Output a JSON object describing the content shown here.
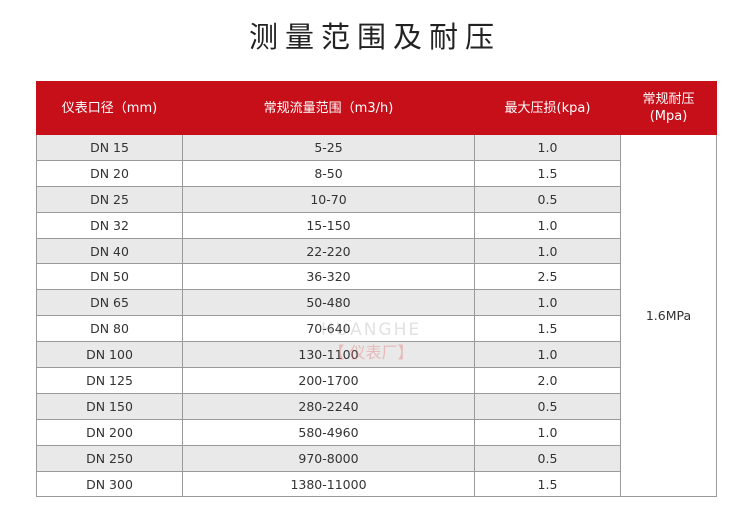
{
  "title": "测量范围及耐压",
  "table": {
    "header_color": "#c70f1a",
    "columns": [
      "仪表口径（mm)",
      "常规流量范围（m3/h)",
      "最大压损(kpa)",
      "常规耐压\n(Mpa)"
    ],
    "rows": [
      [
        "DN 15",
        "5-25",
        "1.0"
      ],
      [
        "DN 20",
        "8-50",
        "1.5"
      ],
      [
        "DN 25",
        "10-70",
        "0.5"
      ],
      [
        "DN 32",
        "15-150",
        "1.0"
      ],
      [
        "DN 40",
        "22-220",
        "1.0"
      ],
      [
        "DN 50",
        "36-320",
        "2.5"
      ],
      [
        "DN 65",
        "50-480",
        "1.0"
      ],
      [
        "DN 80",
        "70-640",
        "1.5"
      ],
      [
        "DN 100",
        "130-1100",
        "1.0"
      ],
      [
        "DN 125",
        "200-1700",
        "2.0"
      ],
      [
        "DN 150",
        "280-2240",
        "0.5"
      ],
      [
        "DN 200",
        "580-4960",
        "1.0"
      ],
      [
        "DN 250",
        "970-8000",
        "0.5"
      ],
      [
        "DN 300",
        "1380-11000",
        "1.5"
      ]
    ],
    "pressure": "1.6MPa"
  },
  "watermark": {
    "brand": "HUANGHE",
    "text": "【 仪表厂】"
  }
}
